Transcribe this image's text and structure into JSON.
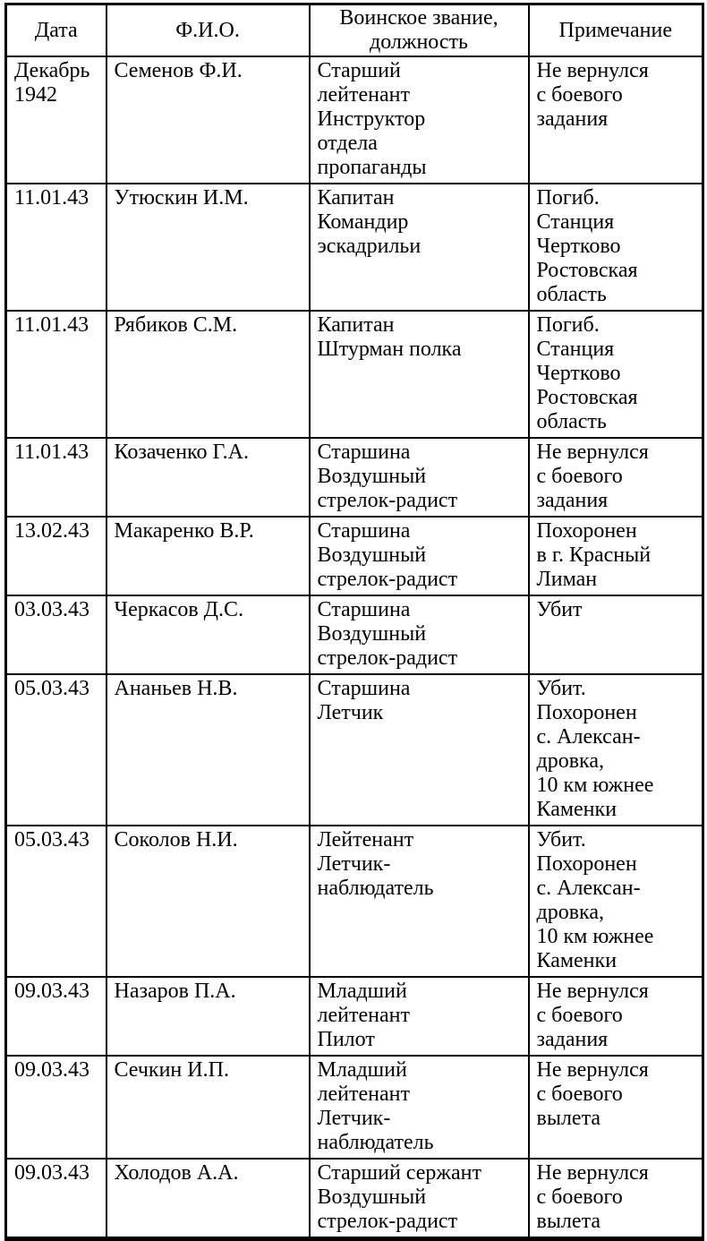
{
  "table": {
    "headers": {
      "date": "Дата",
      "name": "Ф.И.О.",
      "rank": "Воинское звание,\nдолжность",
      "note": "Примечание"
    },
    "rows": [
      {
        "date": "Декабрь\n1942",
        "name": "Семенов Ф.И.",
        "rank": "Старший\nлейтенант\nИнструктор\nотдела\nпропаганды",
        "note": "Не вернулся\nс боевого\nзадания"
      },
      {
        "date": "11.01.43",
        "name": "Утюскин И.М.",
        "rank": "Капитан\nКомандир\nэскадрильи",
        "note": "Погиб.\nСтанция\nЧертково\nРостовская\nобласть"
      },
      {
        "date": "11.01.43",
        "name": "Рябиков С.М.",
        "rank": "Капитан\nШтурман полка",
        "note": "Погиб.\nСтанция\nЧертково\nРостовская\nобласть"
      },
      {
        "date": "11.01.43",
        "name": "Козаченко Г.А.",
        "rank": "Старшина\nВоздушный\nстрелок-радист",
        "note": "Не вернулся\nс боевого\nзадания"
      },
      {
        "date": "13.02.43",
        "name": "Макаренко В.Р.",
        "rank": "Старшина\nВоздушный\nстрелок-радист",
        "note": "Похоронен\nв г. Красный\nЛиман"
      },
      {
        "date": "03.03.43",
        "name": "Черкасов Д.С.",
        "rank": "Старшина\nВоздушный\nстрелок-радист",
        "note": "Убит"
      },
      {
        "date": "05.03.43",
        "name": "Ананьев Н.В.",
        "rank": "Старшина\nЛетчик",
        "note": "Убит.\nПохоронен\nс. Алексан-\nдровка,\n10 км южнее\nКаменки"
      },
      {
        "date": "05.03.43",
        "name": "Соколов Н.И.",
        "rank": "Лейтенант\nЛетчик-\nнаблюдатель",
        "note": "Убит.\nПохоронен\nс. Алексан-\nдровка,\n10 км южнее\nКаменки"
      },
      {
        "date": "09.03.43",
        "name": "Назаров П.А.",
        "rank": "Младший\nлейтенант\nПилот",
        "note": "Не вернулся\nс боевого\nзадания"
      },
      {
        "date": "09.03.43",
        "name": "Сечкин И.П.",
        "rank": "Младший\nлейтенант\nЛетчик-\nнаблюдатель",
        "note": "Не вернулся\nс боевого\nвылета"
      },
      {
        "date": "09.03.43",
        "name": "Холодов А.А.",
        "rank": "Старший сержант\nВоздушный\nстрелок-радист",
        "note": "Не вернулся\nс боевого\nвылета"
      }
    ]
  }
}
